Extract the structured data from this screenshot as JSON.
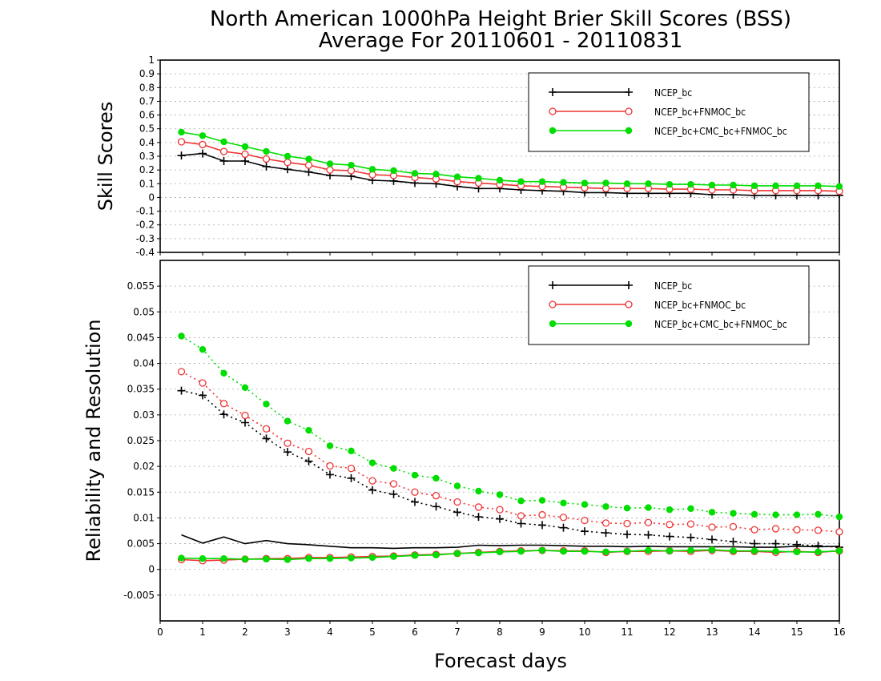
{
  "chart_data": {
    "title_line1": "North American 1000hPa Height Brier Skill Scores (BSS)",
    "title_line2": "Average For 20110601 - 20110831",
    "xlabel": "Forecast days",
    "x_ticks": [
      "0",
      "1",
      "2",
      "3",
      "4",
      "5",
      "6",
      "7",
      "8",
      "9",
      "10",
      "11",
      "12",
      "13",
      "14",
      "15",
      "16"
    ],
    "x": [
      0.5,
      1,
      1.5,
      2,
      2.5,
      3,
      3.5,
      4,
      4.5,
      5,
      5.5,
      6,
      6.5,
      7,
      7.5,
      8,
      8.5,
      9,
      9.5,
      10,
      10.5,
      11,
      11.5,
      12,
      12.5,
      13,
      13.5,
      14,
      14.5,
      15,
      15.5,
      16
    ],
    "panels": [
      {
        "name": "skill",
        "type": "line",
        "ylabel": "Skill Scores",
        "xlim": [
          0,
          16
        ],
        "ylim": [
          -0.4,
          1.0
        ],
        "y_ticks": [
          "-0.4",
          "-0.3",
          "-0.2",
          "-0.1",
          "0",
          "0.1",
          "0.2",
          "0.3",
          "0.4",
          "0.5",
          "0.6",
          "0.7",
          "0.8",
          "0.9",
          "1"
        ],
        "legend_position": "top-right",
        "grid": true,
        "series": [
          {
            "name": "NCEP_bc",
            "color": "#000000",
            "marker": "plus",
            "style": "solid",
            "values": [
              0.305,
              0.32,
              0.265,
              0.265,
              0.225,
              0.205,
              0.185,
              0.16,
              0.155,
              0.125,
              0.12,
              0.105,
              0.1,
              0.08,
              0.065,
              0.065,
              0.055,
              0.05,
              0.045,
              0.035,
              0.035,
              0.03,
              0.03,
              0.03,
              0.03,
              0.02,
              0.02,
              0.015,
              0.015,
              0.015,
              0.015,
              0.015
            ]
          },
          {
            "name": "NCEP_bc+FNMOC_bc",
            "color": "#ee3333",
            "marker": "circle",
            "style": "solid",
            "values": [
              0.405,
              0.385,
              0.335,
              0.315,
              0.28,
              0.255,
              0.235,
              0.2,
              0.195,
              0.165,
              0.16,
              0.145,
              0.135,
              0.115,
              0.105,
              0.095,
              0.085,
              0.08,
              0.075,
              0.07,
              0.065,
              0.065,
              0.065,
              0.06,
              0.06,
              0.055,
              0.055,
              0.05,
              0.05,
              0.05,
              0.05,
              0.045
            ]
          },
          {
            "name": "NCEP_bc+CMC_bc+FNMOC_bc",
            "color": "#00dd00",
            "marker": "dot",
            "style": "solid",
            "values": [
              0.475,
              0.45,
              0.405,
              0.37,
              0.335,
              0.3,
              0.28,
              0.245,
              0.235,
              0.205,
              0.195,
              0.175,
              0.17,
              0.15,
              0.14,
              0.125,
              0.115,
              0.115,
              0.11,
              0.105,
              0.105,
              0.1,
              0.1,
              0.095,
              0.095,
              0.09,
              0.09,
              0.085,
              0.085,
              0.085,
              0.085,
              0.08
            ]
          }
        ]
      },
      {
        "name": "reliability-resolution",
        "type": "line",
        "ylabel": "Reliability and Resolution",
        "xlim": [
          0,
          16
        ],
        "ylim": [
          -0.01,
          0.06
        ],
        "y_ticks": [
          "-0.005",
          "0",
          "0.005",
          "0.01",
          "0.015",
          "0.02",
          "0.025",
          "0.03",
          "0.035",
          "0.04",
          "0.045",
          "0.05",
          "0.055"
        ],
        "legend_position": "top-right",
        "grid": true,
        "series": [
          {
            "name": "NCEP_bc",
            "color": "#000000",
            "marker": "plus",
            "style": "dotted",
            "values": [
              0.0347,
              0.0338,
              0.0301,
              0.0285,
              0.0254,
              0.0228,
              0.021,
              0.0184,
              0.0177,
              0.0154,
              0.0146,
              0.0131,
              0.0122,
              0.0111,
              0.0102,
              0.0098,
              0.0089,
              0.0086,
              0.0081,
              0.0074,
              0.0071,
              0.0068,
              0.0067,
              0.0064,
              0.0062,
              0.0058,
              0.0054,
              0.005,
              0.005,
              0.0048,
              0.0046,
              0.0043
            ]
          },
          {
            "name": "NCEP_bc+FNMOC_bc",
            "color": "#ee3333",
            "marker": "circle",
            "style": "dotted",
            "values": [
              0.0384,
              0.0362,
              0.0322,
              0.0299,
              0.0273,
              0.0245,
              0.0229,
              0.0201,
              0.0196,
              0.0172,
              0.0166,
              0.015,
              0.0143,
              0.0131,
              0.0121,
              0.0116,
              0.0104,
              0.0106,
              0.0101,
              0.0095,
              0.009,
              0.0089,
              0.0091,
              0.0087,
              0.0088,
              0.0082,
              0.0083,
              0.0077,
              0.0079,
              0.0077,
              0.0076,
              0.0073
            ]
          },
          {
            "name": "NCEP_bc+CMC_bc+FNMOC_bc",
            "color": "#00dd00",
            "marker": "dot",
            "style": "dotted",
            "values": [
              0.0453,
              0.0427,
              0.0381,
              0.0353,
              0.0321,
              0.0288,
              0.027,
              0.024,
              0.023,
              0.0207,
              0.0196,
              0.0183,
              0.0177,
              0.0162,
              0.0152,
              0.0145,
              0.0133,
              0.0134,
              0.0129,
              0.0126,
              0.0122,
              0.0119,
              0.012,
              0.0116,
              0.0118,
              0.0111,
              0.0109,
              0.0107,
              0.0106,
              0.0106,
              0.0107,
              0.0102
            ]
          },
          {
            "name": "",
            "color": "#000000",
            "marker": "none",
            "style": "solid",
            "values": [
              0.0067,
              0.0051,
              0.0063,
              0.005,
              0.0056,
              0.005,
              0.0048,
              0.0045,
              0.0042,
              0.0042,
              0.0041,
              0.0042,
              0.0042,
              0.0043,
              0.0047,
              0.0046,
              0.0047,
              0.0047,
              0.0046,
              0.0045,
              0.0045,
              0.0044,
              0.0045,
              0.0044,
              0.0044,
              0.0044,
              0.0044,
              0.0043,
              0.0043,
              0.0045,
              0.0044,
              0.0045
            ]
          },
          {
            "name": "",
            "color": "#ee3333",
            "marker": "circle",
            "style": "solid",
            "values": [
              0.0019,
              0.0017,
              0.0018,
              0.002,
              0.0021,
              0.0021,
              0.0023,
              0.0023,
              0.0024,
              0.0025,
              0.0026,
              0.0028,
              0.0029,
              0.0031,
              0.0033,
              0.0035,
              0.0036,
              0.0037,
              0.0036,
              0.0036,
              0.0033,
              0.0035,
              0.0035,
              0.0036,
              0.0035,
              0.0037,
              0.0035,
              0.0035,
              0.0033,
              0.0035,
              0.0033,
              0.0036
            ]
          },
          {
            "name": "",
            "color": "#00dd00",
            "marker": "dot",
            "style": "solid",
            "values": [
              0.0022,
              0.0021,
              0.0021,
              0.002,
              0.002,
              0.0019,
              0.0021,
              0.0021,
              0.0022,
              0.0023,
              0.0025,
              0.0027,
              0.0028,
              0.0031,
              0.0032,
              0.0034,
              0.0035,
              0.0037,
              0.0035,
              0.0035,
              0.0034,
              0.0035,
              0.0037,
              0.0036,
              0.0037,
              0.0038,
              0.0036,
              0.0036,
              0.0035,
              0.0034,
              0.0034,
              0.0036
            ]
          }
        ]
      }
    ]
  }
}
